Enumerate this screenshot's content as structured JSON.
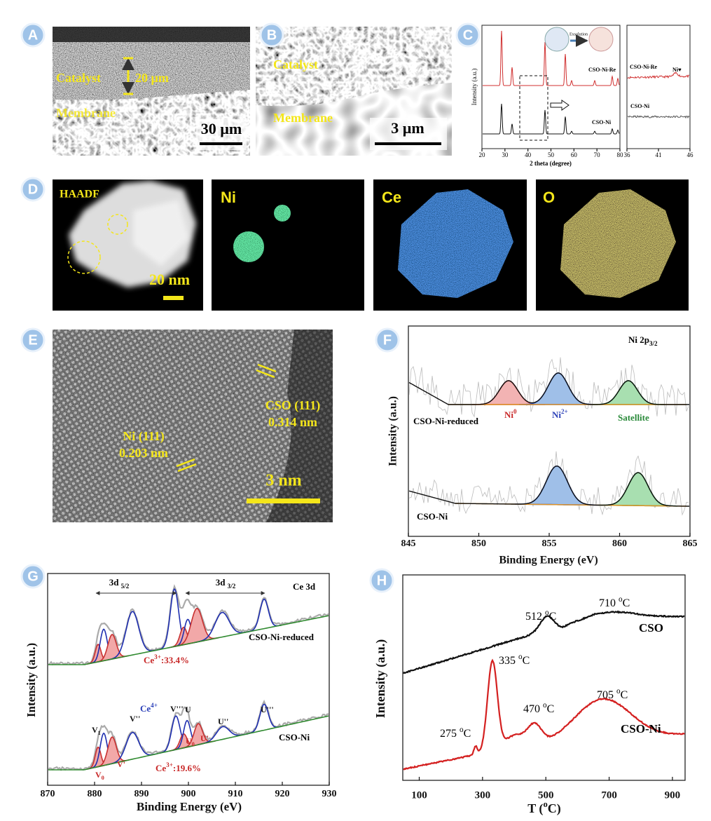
{
  "panel_a": {
    "label": "A",
    "catalyst": "Catalyst",
    "thickness": "20 µm",
    "membrane": "Membrane",
    "scale_bar": "30 µm"
  },
  "panel_b": {
    "label": "B",
    "catalyst": "Catalyst",
    "membrane": "Membrane",
    "scale_bar": "3 µm"
  },
  "panel_c": {
    "label": "C",
    "y_label": "Intensity (a.u.)",
    "x_label": "2 theta (degree)",
    "xlim": [
      20,
      80
    ],
    "xticks": [
      20,
      30,
      40,
      50,
      60,
      70,
      80
    ],
    "inset_xlim": [
      36,
      46
    ],
    "inset_xticks": [
      36,
      41,
      46
    ],
    "series": [
      "CSO-Ni-Re",
      "CSO-Ni"
    ],
    "inset_series": [
      "CSO-Ni-Re",
      "CSO-Ni"
    ],
    "inset_peak": "Ni♥",
    "scheme_label": "Exsolution"
  },
  "panel_d": {
    "label": "D",
    "maps": [
      "HAADF",
      "Ni",
      "Ce",
      "O"
    ],
    "scale_bar": "20 nm"
  },
  "panel_e": {
    "label": "E",
    "ni_plane": "Ni (111)",
    "ni_spacing": "0.203 nm",
    "cso_plane": "CSO (111)",
    "cso_spacing": "0.314 nm",
    "scale_bar": "3 nm"
  },
  "panel_f": {
    "label": "F",
    "title": {
      "main": "Ni 2p",
      "sub": "3/2"
    },
    "y_label": "Intensity (a.u.)",
    "x_label": "Binding Energy (eV)",
    "xlim": [
      845,
      865
    ],
    "xticks": [
      845,
      850,
      855,
      860,
      865
    ],
    "samples": [
      "CSO-Ni-reduced",
      "CSO-Ni"
    ],
    "peaks": [
      {
        "main": "Ni",
        "sup": "0"
      },
      {
        "main": "Ni",
        "sup": "2+"
      },
      {
        "main": "Satellite"
      }
    ]
  },
  "panel_g": {
    "label": "G",
    "title": "Ce 3d",
    "y_label": "Intensity (a.u.)",
    "x_label": "Binding Energy (eV)",
    "xlim": [
      870,
      930
    ],
    "xticks": [
      870,
      880,
      890,
      900,
      910,
      920,
      930
    ],
    "regions": [
      {
        "main": "3d ",
        "sub": "5/2"
      },
      {
        "main": "3d ",
        "sub": "3/2"
      }
    ],
    "samples": [
      "CSO-Ni-reduced",
      "CSO-Ni"
    ],
    "ce3_fractions": [
      {
        "main": "Ce",
        "sup": "3+",
        "tail": ":33.4%"
      },
      {
        "main": "Ce",
        "sup": "3+",
        "tail": ":19.6%"
      }
    ],
    "ce4": {
      "main": "Ce",
      "sup": "4+"
    },
    "peak_labels": [
      {
        "main": "V",
        "sub": "1"
      },
      {
        "main": "V",
        "sub": "0"
      },
      {
        "main": "V'"
      },
      {
        "main": "V''"
      },
      {
        "main": "V'''"
      },
      {
        "main": "U"
      },
      {
        "main": "U",
        "sub": "0"
      },
      {
        "main": "U'"
      },
      {
        "main": "U''"
      },
      {
        "main": "U'''"
      }
    ]
  },
  "panel_h": {
    "label": "H",
    "y_label": "Intensity (a.u.)",
    "x_label": {
      "main": "T (",
      "sup": "o",
      "tail": "C)"
    },
    "xlim": [
      48,
      940
    ],
    "xticks": [
      100,
      300,
      500,
      700,
      900
    ],
    "samples": [
      "CSO",
      "CSO-Ni"
    ],
    "peaks": [
      {
        "main": "512 ",
        "sup": "o",
        "tail": "C"
      },
      {
        "main": "710 ",
        "sup": "o",
        "tail": "C"
      },
      {
        "main": "335 ",
        "sup": "o",
        "tail": "C"
      },
      {
        "main": "275 ",
        "sup": "o",
        "tail": "C"
      },
      {
        "main": "470 ",
        "sup": "o",
        "tail": "C"
      },
      {
        "main": "705 ",
        "sup": "o",
        "tail": "C"
      }
    ]
  }
}
